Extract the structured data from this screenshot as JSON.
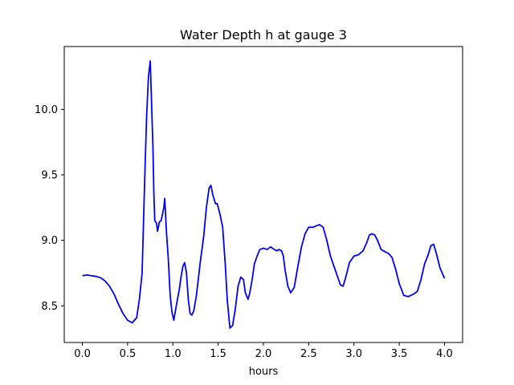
{
  "chart_data": {
    "type": "line",
    "title": "Water Depth h at gauge 3",
    "xlabel": "hours",
    "ylabel": "",
    "xlim": [
      -0.2,
      4.2
    ],
    "ylim": [
      8.22,
      10.48
    ],
    "grid": false,
    "line_color": "#0000ff",
    "x_ticks": [
      0.0,
      0.5,
      1.0,
      1.5,
      2.0,
      2.5,
      3.0,
      3.5,
      4.0
    ],
    "x_tick_labels": [
      "0.0",
      "0.5",
      "1.0",
      "1.5",
      "2.0",
      "2.5",
      "3.0",
      "3.5",
      "4.0"
    ],
    "y_ticks": [
      8.5,
      9.0,
      9.5,
      10.0
    ],
    "y_tick_labels": [
      "8.5",
      "9.0",
      "9.5",
      "10.0"
    ],
    "series": [
      {
        "x": [
          0.0,
          0.05,
          0.1,
          0.15,
          0.2,
          0.25,
          0.3,
          0.35,
          0.4,
          0.45,
          0.5,
          0.55,
          0.6,
          0.63,
          0.66,
          0.69,
          0.71,
          0.73,
          0.75,
          0.76,
          0.78,
          0.79,
          0.8,
          0.82,
          0.83,
          0.84,
          0.85,
          0.87,
          0.9,
          0.91,
          0.93,
          0.95,
          0.97,
          0.99,
          1.01,
          1.03,
          1.05,
          1.07,
          1.09,
          1.11,
          1.13,
          1.15,
          1.17,
          1.19,
          1.21,
          1.23,
          1.26,
          1.3,
          1.34,
          1.37,
          1.4,
          1.42,
          1.44,
          1.47,
          1.49,
          1.52,
          1.55,
          1.58,
          1.6,
          1.63,
          1.66,
          1.69,
          1.72,
          1.75,
          1.78,
          1.8,
          1.83,
          1.85,
          1.88,
          1.9,
          1.93,
          1.96,
          2.0,
          2.04,
          2.08,
          2.12,
          2.15,
          2.17,
          2.2,
          2.22,
          2.24,
          2.27,
          2.3,
          2.34,
          2.38,
          2.42,
          2.46,
          2.5,
          2.55,
          2.58,
          2.62,
          2.66,
          2.7,
          2.74,
          2.78,
          2.82,
          2.85,
          2.88,
          2.91,
          2.95,
          3.0,
          3.05,
          3.1,
          3.14,
          3.17,
          3.2,
          3.23,
          3.26,
          3.3,
          3.35,
          3.38,
          3.42,
          3.46,
          3.5,
          3.55,
          3.6,
          3.63,
          3.66,
          3.7,
          3.74,
          3.78,
          3.82,
          3.85,
          3.88,
          3.91,
          3.95,
          4.0
        ],
        "y": [
          8.73,
          8.735,
          8.73,
          8.725,
          8.715,
          8.69,
          8.65,
          8.59,
          8.51,
          8.44,
          8.39,
          8.37,
          8.41,
          8.55,
          8.75,
          9.5,
          9.95,
          10.25,
          10.37,
          10.15,
          9.7,
          9.35,
          9.15,
          9.13,
          9.07,
          9.1,
          9.14,
          9.15,
          9.25,
          9.32,
          9.05,
          8.85,
          8.58,
          8.45,
          8.39,
          8.47,
          8.55,
          8.62,
          8.72,
          8.8,
          8.83,
          8.75,
          8.55,
          8.44,
          8.43,
          8.46,
          8.58,
          8.82,
          9.03,
          9.25,
          9.4,
          9.42,
          9.35,
          9.28,
          9.28,
          9.2,
          9.1,
          8.8,
          8.55,
          8.33,
          8.35,
          8.48,
          8.65,
          8.72,
          8.7,
          8.6,
          8.55,
          8.6,
          8.72,
          8.82,
          8.88,
          8.93,
          8.94,
          8.93,
          8.95,
          8.93,
          8.92,
          8.93,
          8.92,
          8.88,
          8.77,
          8.65,
          8.6,
          8.64,
          8.8,
          8.95,
          9.05,
          9.1,
          9.1,
          9.11,
          9.12,
          9.1,
          9.0,
          8.88,
          8.8,
          8.72,
          8.66,
          8.65,
          8.72,
          8.83,
          8.88,
          8.89,
          8.92,
          8.98,
          9.04,
          9.05,
          9.04,
          9.0,
          8.93,
          8.91,
          8.9,
          8.87,
          8.78,
          8.67,
          8.58,
          8.57,
          8.58,
          8.59,
          8.61,
          8.7,
          8.82,
          8.89,
          8.96,
          8.97,
          8.9,
          8.79,
          8.71
        ]
      }
    ]
  }
}
